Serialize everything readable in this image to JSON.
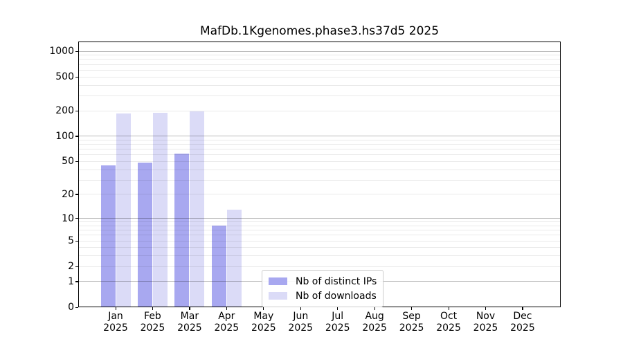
{
  "chart_data": {
    "type": "bar",
    "title": "MafDb.1Kgenomes.phase3.hs37d5 2025",
    "categories": [
      "Jan",
      "Feb",
      "Mar",
      "Apr",
      "May",
      "Jun",
      "Jul",
      "Aug",
      "Sep",
      "Oct",
      "Nov",
      "Dec"
    ],
    "year_label": "2025",
    "series": [
      {
        "name": "Nb of distinct IPs",
        "color": "#a8a8f0",
        "values": [
          45,
          49,
          62,
          8,
          null,
          null,
          null,
          null,
          null,
          null,
          null,
          null
        ]
      },
      {
        "name": "Nb of downloads",
        "color": "#dbdbf7",
        "values": [
          185,
          190,
          196,
          13,
          null,
          null,
          null,
          null,
          null,
          null,
          null,
          null
        ]
      }
    ],
    "y_axis": {
      "scale": "log10(1+y)",
      "tick_values": [
        1000,
        500,
        200,
        100,
        50,
        20,
        10,
        5,
        2,
        1,
        0
      ],
      "major_gridlines": [
        1,
        10,
        100,
        1000
      ],
      "minor_gridlines": [
        2,
        3,
        4,
        5,
        6,
        7,
        8,
        9,
        20,
        30,
        40,
        50,
        60,
        70,
        80,
        90,
        200,
        300,
        400,
        500,
        600,
        700,
        800,
        900
      ],
      "ymax_at_top": 1326
    },
    "grid": {
      "enabled": true,
      "legend_position": "bottom-center"
    },
    "colors": {
      "text": "#000000",
      "spine": "#000000",
      "legend_border": "#cccccc"
    }
  }
}
